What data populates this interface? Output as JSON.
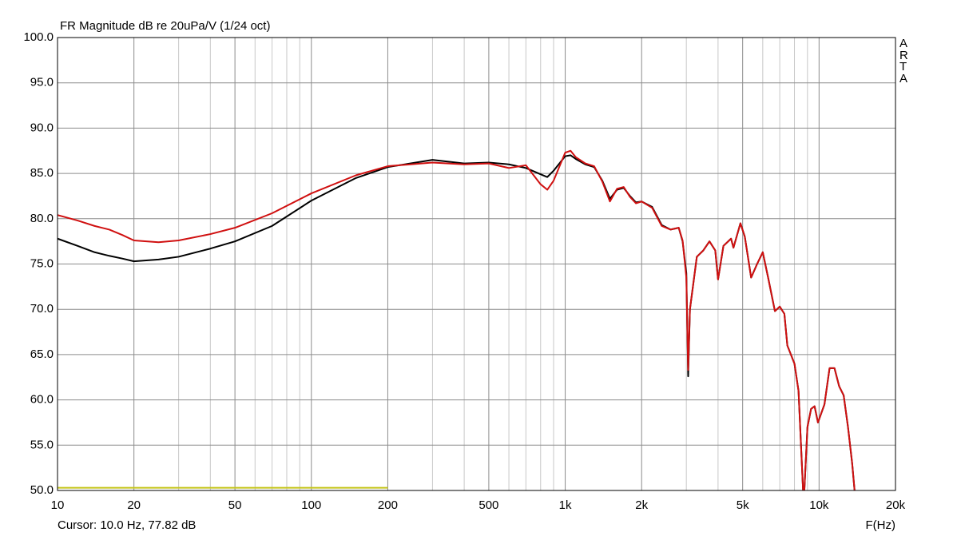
{
  "chart_data": {
    "type": "line",
    "title": "FR Magnitude dB re 20uPa/V (1/24 oct)",
    "watermark": "ARTA",
    "cursor": "Cursor: 10.0 Hz, 77.82 dB",
    "x_label": "F(Hz)",
    "log_x": true,
    "grid": true,
    "xlim": [
      10,
      20000
    ],
    "ylim": [
      50,
      100
    ],
    "xticks": [
      10,
      20,
      50,
      100,
      200,
      500,
      {
        "value": 1000,
        "label": "1k"
      },
      {
        "value": 2000,
        "label": "2k"
      },
      {
        "value": 5000,
        "label": "5k"
      },
      {
        "value": 10000,
        "label": "10k"
      },
      {
        "value": 20000,
        "label": "20k"
      }
    ],
    "minor_xticks": [
      30,
      40,
      60,
      70,
      80,
      90,
      300,
      400,
      600,
      700,
      800,
      900,
      3000,
      4000,
      6000,
      7000,
      8000,
      9000
    ],
    "yticks": [
      {
        "value": 50,
        "label": "50.0"
      },
      {
        "value": 55,
        "label": "55.0"
      },
      {
        "value": 60,
        "label": "60.0"
      },
      {
        "value": 65,
        "label": "65.0"
      },
      {
        "value": 70,
        "label": "70.0"
      },
      {
        "value": 75,
        "label": "75.0"
      },
      {
        "value": 80,
        "label": "80.0"
      },
      {
        "value": 85,
        "label": "85.0"
      },
      {
        "value": 90,
        "label": "90.0"
      },
      {
        "value": 95,
        "label": "95.0"
      },
      {
        "value": 100,
        "label": "100.0"
      }
    ],
    "x": [
      10,
      12,
      14,
      16,
      18,
      20,
      25,
      30,
      40,
      50,
      70,
      100,
      150,
      200,
      300,
      400,
      500,
      600,
      700,
      800,
      850,
      900,
      1000,
      1050,
      1100,
      1200,
      1300,
      1400,
      1500,
      1600,
      1700,
      1800,
      1900,
      2000,
      2200,
      2400,
      2600,
      2800,
      2900,
      3000,
      3050,
      3100,
      3300,
      3500,
      3700,
      3900,
      4000,
      4200,
      4500,
      4600,
      4900,
      5100,
      5400,
      5700,
      6000,
      6300,
      6700,
      7000,
      7300,
      7500,
      8000,
      8300,
      8650,
      8750,
      9000,
      9300,
      9600,
      9900,
      10500,
      11000,
      11500,
      12000,
      12500,
      13000,
      13500,
      13800
    ],
    "series": [
      {
        "color": "#000000",
        "values": [
          77.8,
          77.0,
          76.3,
          75.9,
          75.6,
          75.3,
          75.5,
          75.8,
          76.7,
          77.5,
          79.2,
          82.0,
          84.5,
          85.7,
          86.5,
          86.1,
          86.2,
          86.0,
          85.6,
          84.9,
          84.6,
          85.3,
          86.9,
          87.0,
          86.6,
          86.0,
          85.7,
          84.2,
          82.2,
          83.2,
          83.4,
          82.5,
          81.8,
          81.9,
          81.3,
          79.3,
          78.8,
          79.0,
          77.5,
          74.0,
          62.6,
          70.0,
          75.8,
          76.5,
          77.5,
          76.5,
          73.3,
          77.0,
          77.8,
          76.8,
          79.5,
          78.0,
          73.5,
          75.0,
          76.3,
          73.5,
          69.8,
          70.3,
          69.5,
          66.0,
          64.0,
          61.0,
          50.0,
          50.0,
          57.0,
          59.0,
          59.3,
          57.5,
          59.5,
          63.5,
          63.5,
          61.5,
          60.5,
          57.0,
          53.0,
          50.0
        ]
      },
      {
        "color": "#d01010",
        "values": [
          80.4,
          79.8,
          79.2,
          78.8,
          78.2,
          77.6,
          77.4,
          77.6,
          78.3,
          79.0,
          80.6,
          82.8,
          84.8,
          85.8,
          86.2,
          86.0,
          86.1,
          85.6,
          85.9,
          83.8,
          83.2,
          84.2,
          87.3,
          87.5,
          86.8,
          86.1,
          85.8,
          84.1,
          81.9,
          83.3,
          83.5,
          82.4,
          81.7,
          81.9,
          81.2,
          79.2,
          78.8,
          79.0,
          77.6,
          73.5,
          63.3,
          70.0,
          75.8,
          76.5,
          77.5,
          76.5,
          73.3,
          77.0,
          77.8,
          76.8,
          79.5,
          78.0,
          73.5,
          75.0,
          76.3,
          73.5,
          69.8,
          70.3,
          69.5,
          66.0,
          64.0,
          61.0,
          50.0,
          50.0,
          57.0,
          59.0,
          59.3,
          57.5,
          59.5,
          63.5,
          63.5,
          61.5,
          60.5,
          57.0,
          53.0,
          50.0
        ]
      }
    ],
    "baseline_trace": {
      "color": "#c4c418",
      "x": [
        10,
        200
      ],
      "values": [
        50.3,
        50.3
      ]
    }
  }
}
